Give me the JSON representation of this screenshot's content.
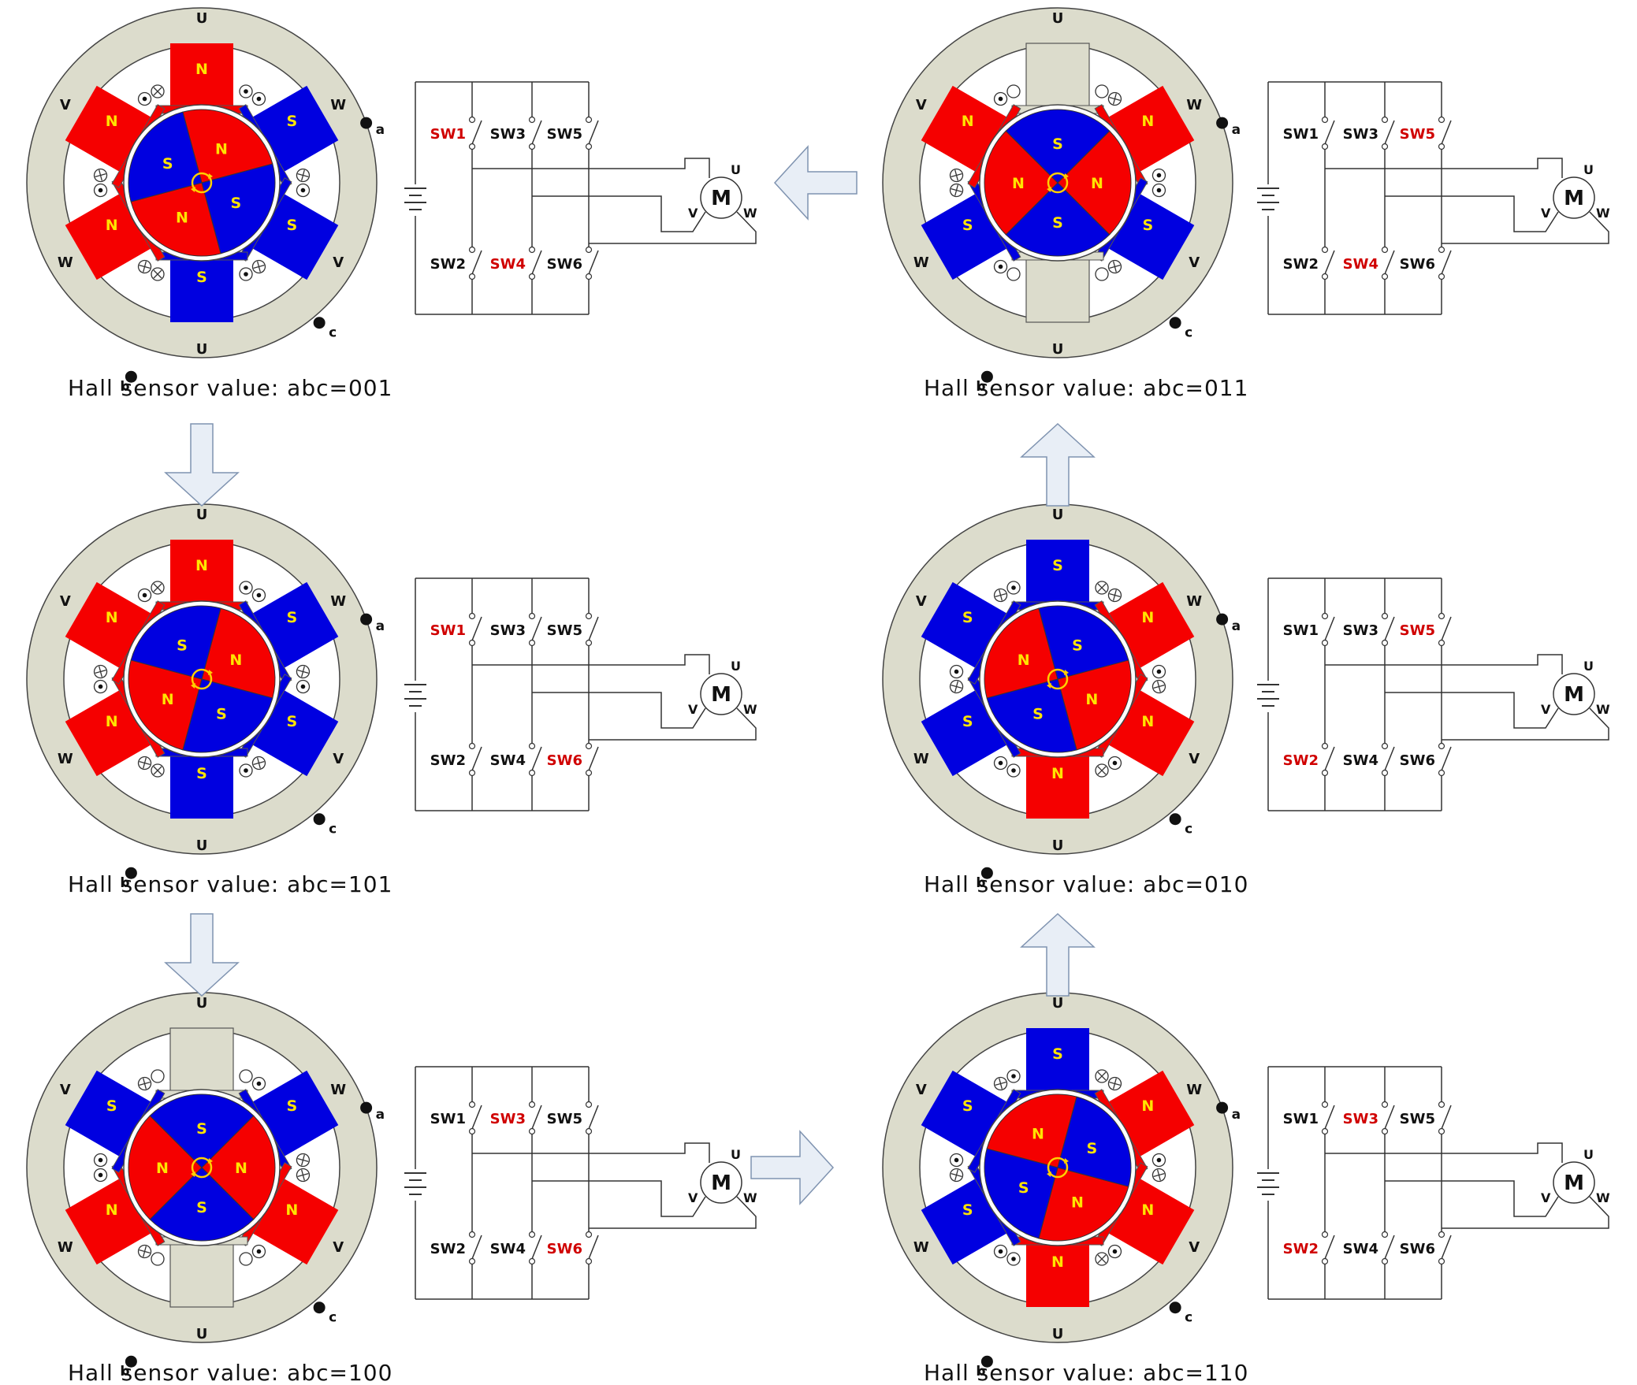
{
  "colors": {
    "north": "#f50000",
    "south": "#0000e0",
    "stator": "#dcdccc",
    "active_switch": "#d00000",
    "arrow_fill": "#e8eef6",
    "arrow_stroke": "#7f93b0"
  },
  "magnet_labels": {
    "north": "N",
    "south": "S"
  },
  "phase_labels": {
    "u": "U",
    "v": "V",
    "w": "W"
  },
  "sensor_labels": {
    "a": "a",
    "b": "b",
    "c": "c"
  },
  "motor_label": "M",
  "switch_labels": [
    "SW1",
    "SW2",
    "SW3",
    "SW4",
    "SW5",
    "SW6"
  ],
  "icons": [
    "conductor-dot-icon",
    "conductor-cross-icon",
    "rotation-arrow-icon",
    "battery-icon",
    "switch-icon",
    "flow-arrow-icon"
  ],
  "states": [
    {
      "caption": "Hall sensor value: abc=001",
      "active": [
        "SW1",
        "SW4"
      ],
      "rotor_angle": -15,
      "poles": {
        "u": "N",
        "v": "S",
        "w": "S"
      }
    },
    {
      "caption": "Hall sensor value: abc=101",
      "active": [
        "SW1",
        "SW6"
      ],
      "rotor_angle": 15,
      "poles": {
        "u": "N",
        "v": "S",
        "w": "S"
      }
    },
    {
      "caption": "Hall sensor value: abc=100",
      "active": [
        "SW3",
        "SW6"
      ],
      "rotor_angle": 45,
      "poles": {
        "u": "",
        "v": "N",
        "w": "S"
      }
    },
    {
      "caption": "Hall sensor value: abc=011",
      "active": [
        "SW4",
        "SW5"
      ],
      "rotor_angle": 45,
      "poles": {
        "u": "",
        "v": "S",
        "w": "N"
      }
    },
    {
      "caption": "Hall sensor value: abc=010",
      "active": [
        "SW2",
        "SW5"
      ],
      "rotor_angle": 75,
      "poles": {
        "u": "S",
        "v": "N",
        "w": "N"
      }
    },
    {
      "caption": "Hall sensor value: abc=110",
      "active": [
        "SW2",
        "SW3"
      ],
      "rotor_angle": 105,
      "poles": {
        "u": "S",
        "v": "N",
        "w": "N"
      }
    }
  ]
}
